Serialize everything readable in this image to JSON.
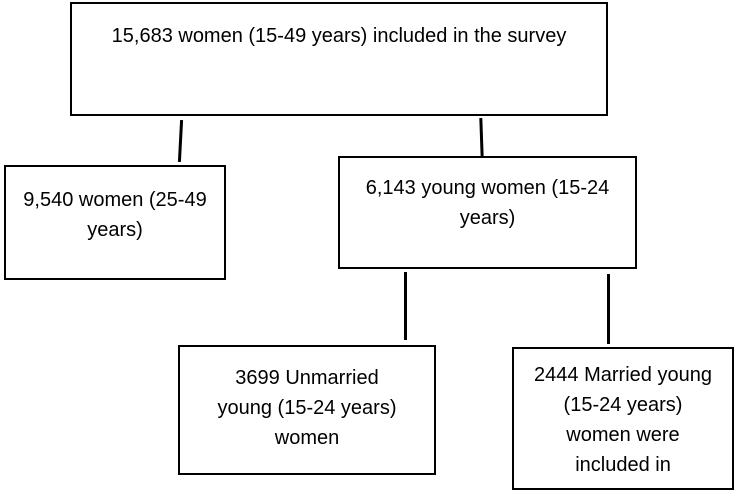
{
  "boxes": {
    "root": "15,683 women (15-49 years) included in the survey",
    "left": "9,540 women (25-49 years)",
    "right": "6,143 young women (15-24 years)",
    "bottom_left": "3699 Unmarried young (15-24 years) women",
    "bottom_right": "2444 Married young (15-24 years) women were included in"
  }
}
